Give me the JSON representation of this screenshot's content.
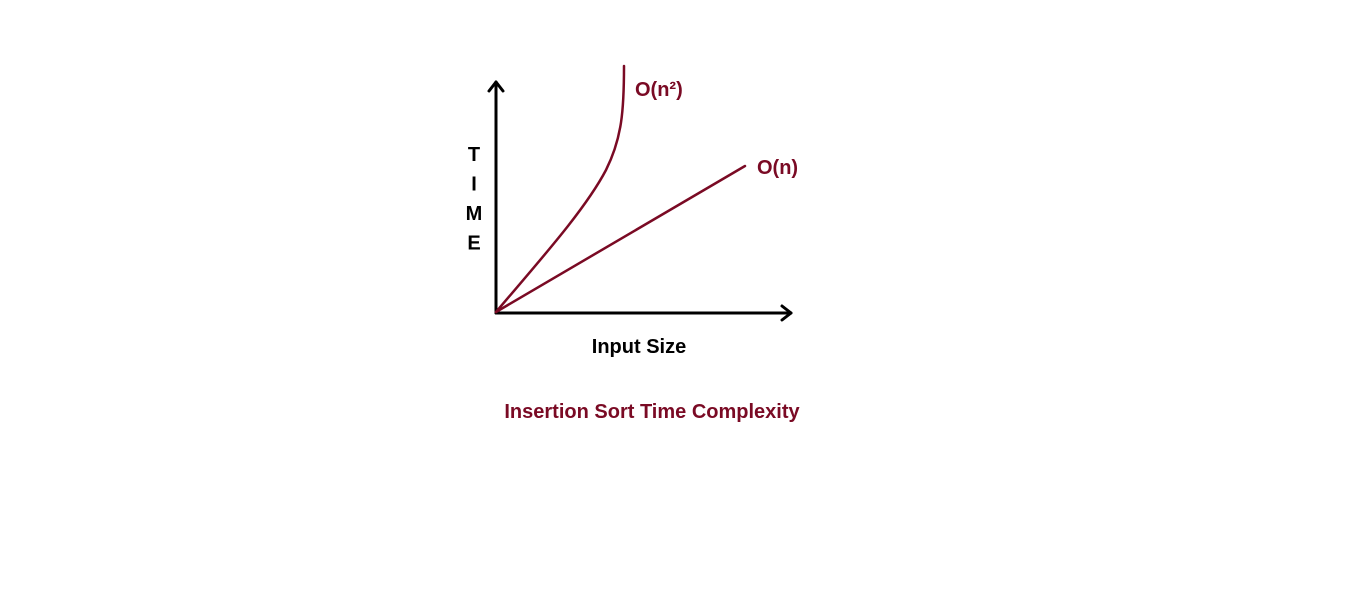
{
  "diagram": {
    "y_axis_label": "TIME",
    "x_axis_label": "Input Size",
    "caption": "Insertion Sort Time Complexity",
    "curves": [
      {
        "id": "quadratic",
        "label": "O(n²)"
      },
      {
        "id": "linear",
        "label": "O(n)"
      }
    ],
    "colors": {
      "curve": "#7a0a24",
      "axis": "#000000",
      "caption": "#7a0a24"
    }
  }
}
